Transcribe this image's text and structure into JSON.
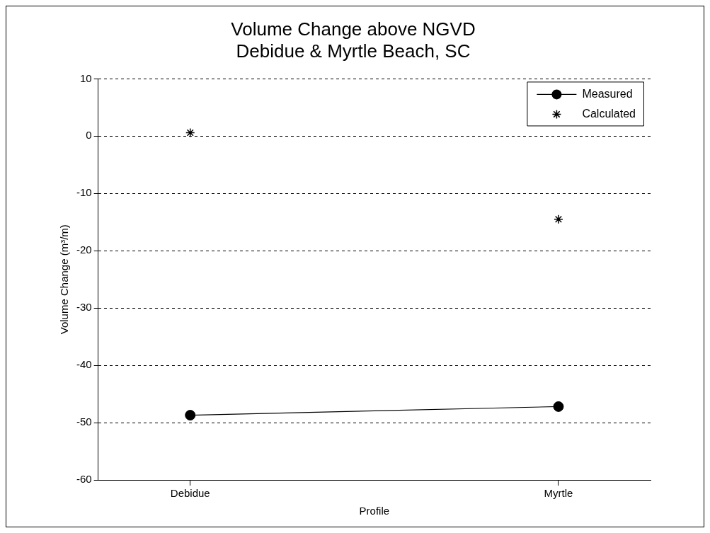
{
  "chart_data": {
    "type": "line",
    "title": "Volume Change above NGVD\nDebidue & Myrtle Beach, SC",
    "xlabel": "Profile",
    "ylabel": "Volume Change (m³/m)",
    "categories": [
      "Debidue",
      "Myrtle"
    ],
    "series": [
      {
        "name": "Measured",
        "type": "line",
        "marker": "circle",
        "line_style": "solid",
        "color": "#000000",
        "values": [
          -48.7,
          -47.2
        ]
      },
      {
        "name": "Calculated",
        "type": "scatter",
        "marker": "cross",
        "color": "#000000",
        "values": [
          0.6,
          -14.5
        ]
      }
    ],
    "ylim": [
      -60,
      10
    ],
    "yticks": [
      -60,
      -50,
      -40,
      -30,
      -20,
      -10,
      0,
      10
    ],
    "grid": "y",
    "legend": "top right"
  }
}
